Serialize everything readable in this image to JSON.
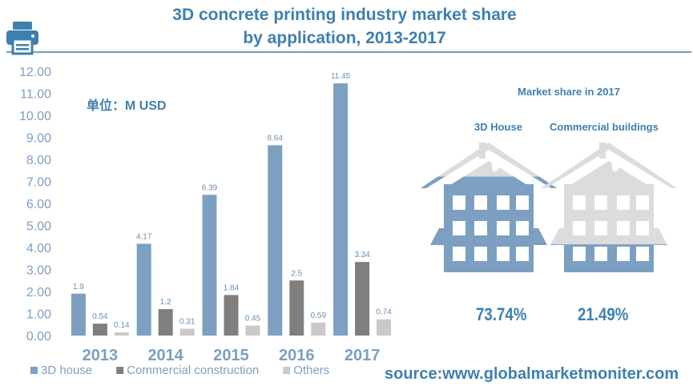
{
  "header": {
    "title_line1": "3D concrete printing industry market share",
    "title_line2": "by application, 2013-2017"
  },
  "unit_label": "单位：M USD",
  "source": "source:www.globalmarketmoniter.com",
  "colors": {
    "accent": "#3e7fb0",
    "house": "#7c9fc2",
    "commercial": "#7f7f7f",
    "others": "#c9c9c9",
    "house_light": "#d9d9d9"
  },
  "chart_data": {
    "type": "bar",
    "categories": [
      "2013",
      "2014",
      "2015",
      "2016",
      "2017"
    ],
    "series": [
      {
        "name": "3D house",
        "values": [
          1.9,
          4.17,
          6.39,
          8.64,
          11.45
        ]
      },
      {
        "name": "Commercial construction",
        "values": [
          0.54,
          1.2,
          1.84,
          2.5,
          3.34
        ]
      },
      {
        "name": "Others",
        "values": [
          0.14,
          0.31,
          0.45,
          0.59,
          0.74
        ]
      }
    ],
    "ylim": [
      0,
      12
    ],
    "yticks": [
      "0.00",
      "1.00",
      "2.00",
      "3.00",
      "4.00",
      "5.00",
      "6.00",
      "7.00",
      "8.00",
      "9.00",
      "10.00",
      "11.00",
      "12.00"
    ],
    "legend_position": "bottom-left",
    "grid": false
  },
  "market_share": {
    "title": "Market share in 2017",
    "items": [
      {
        "label": "3D House",
        "value": "73.74%",
        "fill_percent": 73.74
      },
      {
        "label": "Commercial buildings",
        "value": "21.49%",
        "fill_percent": 21.49
      }
    ]
  }
}
